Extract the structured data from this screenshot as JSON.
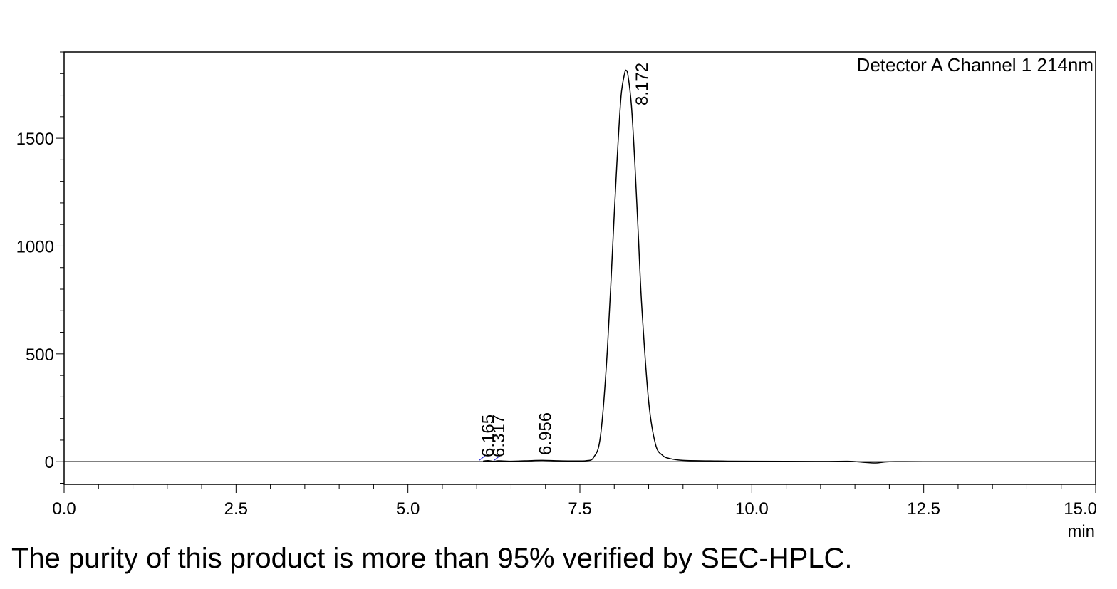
{
  "chart_data": {
    "type": "line",
    "title": "",
    "xlabel": "",
    "ylabel": "",
    "x_unit": "min",
    "xlim": [
      0.0,
      15.0
    ],
    "ylim": [
      -105,
      1900
    ],
    "x_ticks": [
      0.0,
      2.5,
      5.0,
      7.5,
      10.0,
      12.5,
      15.0
    ],
    "x_tick_labels": [
      "0.0",
      "2.5",
      "5.0",
      "7.5",
      "10.0",
      "12.5",
      "15.0"
    ],
    "y_ticks": [
      0,
      500,
      1000,
      1500
    ],
    "y_tick_labels": [
      "0",
      "500",
      "1000",
      "1500"
    ],
    "grid": false,
    "legend": {
      "text": "Detector A Channel 1 214nm",
      "placement": "top-right"
    },
    "series": [
      {
        "x": [
          0.0,
          6.0,
          6.1,
          6.165,
          6.25,
          6.317,
          6.5,
          6.8,
          6.956,
          7.2,
          7.5,
          7.6,
          7.7,
          7.8,
          7.9,
          8.0,
          8.05,
          8.1,
          8.15,
          8.172,
          8.2,
          8.25,
          8.3,
          8.35,
          8.4,
          8.5,
          8.6,
          8.7,
          8.8,
          9.0,
          9.5,
          10.0,
          11.0,
          11.4,
          11.6,
          11.8,
          12.0,
          12.5,
          15.0
        ],
        "y": [
          0,
          0,
          3,
          5,
          1,
          4,
          2,
          5,
          6,
          4,
          3,
          5,
          20,
          120,
          520,
          1150,
          1450,
          1700,
          1800,
          1815,
          1790,
          1650,
          1380,
          1050,
          720,
          280,
          80,
          30,
          15,
          6,
          3,
          2,
          1,
          2,
          -2,
          -6,
          0,
          0,
          0
        ]
      }
    ],
    "peaks": [
      {
        "rt": 6.165,
        "label": "6.165"
      },
      {
        "rt": 6.317,
        "label": "6.317"
      },
      {
        "rt": 6.956,
        "label": "6.956"
      },
      {
        "rt": 8.172,
        "label": "8.172"
      }
    ]
  },
  "caption": "The purity of this product is more than 95% verified by SEC-HPLC."
}
